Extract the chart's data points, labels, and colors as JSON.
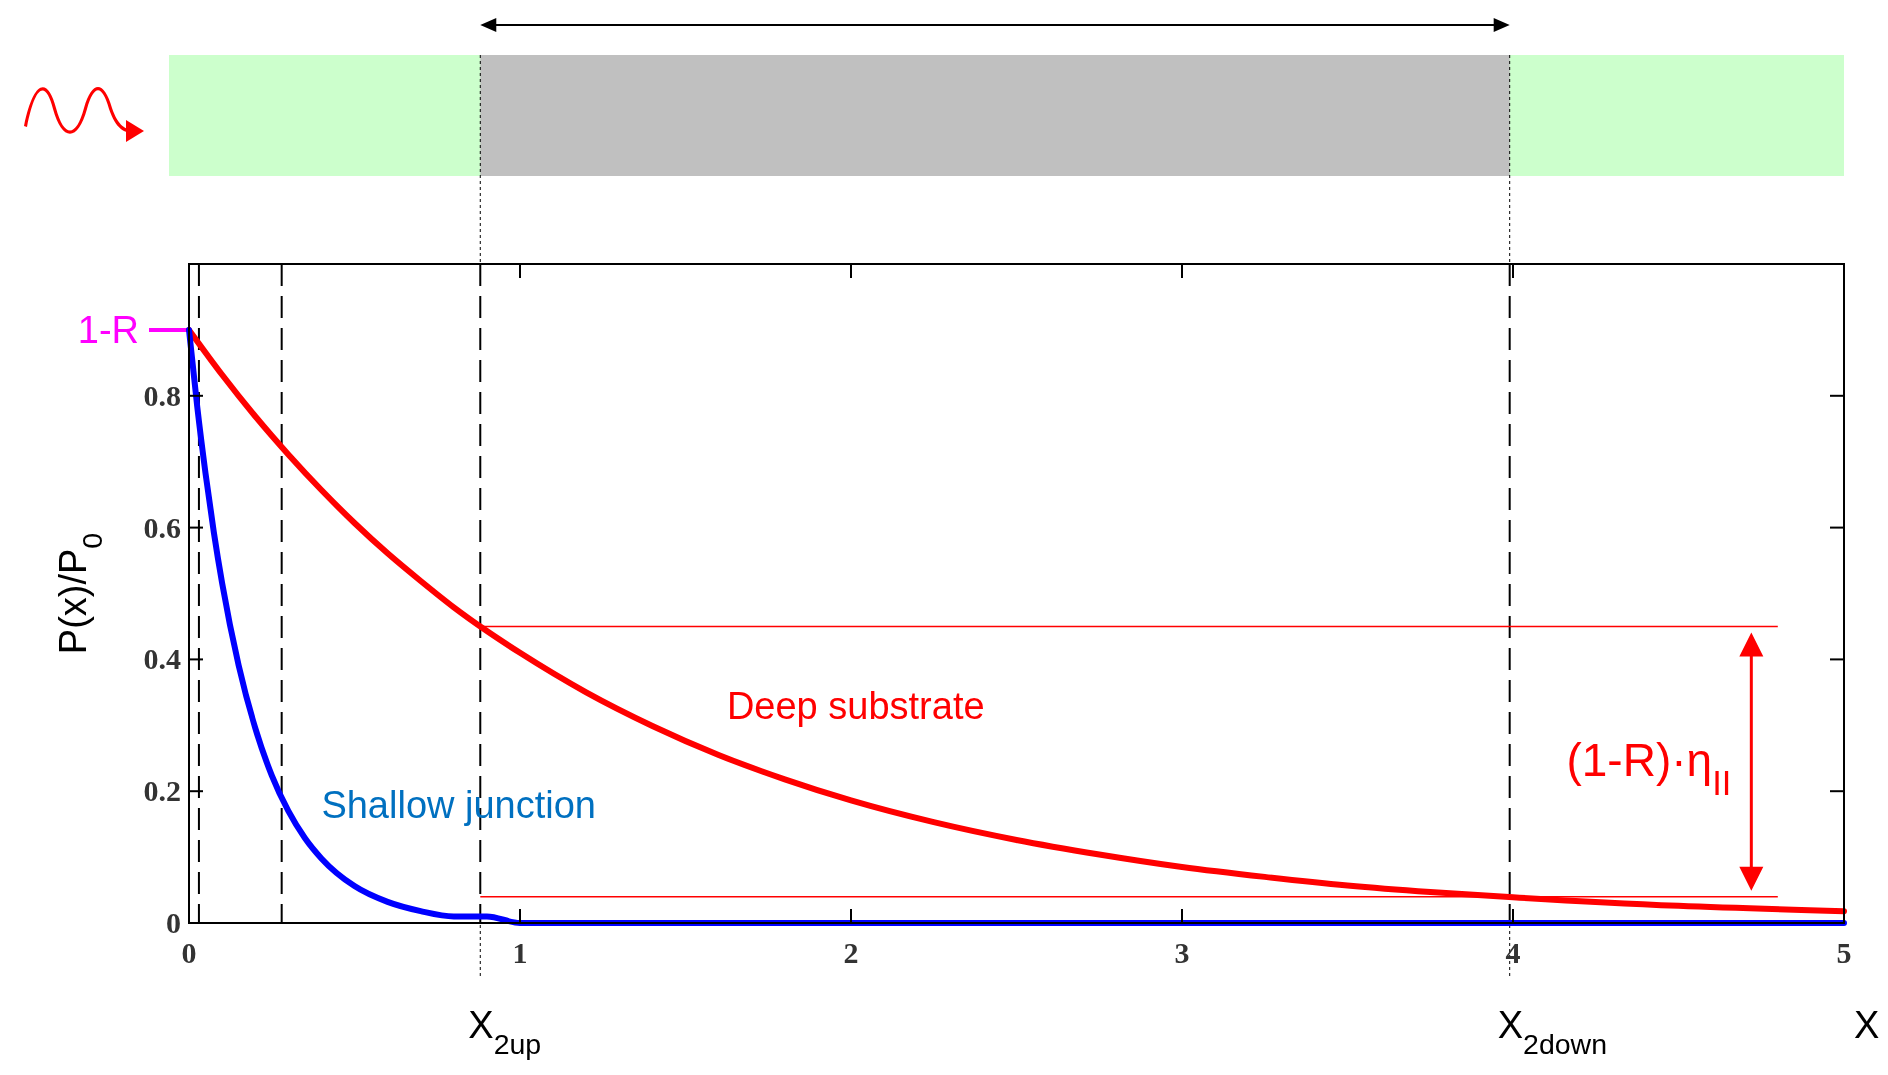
{
  "chart_data": {
    "type": "line",
    "xlabel": "X",
    "ylabel": "P(x)/P$_{0}$",
    "xlim": [
      0,
      5
    ],
    "ylim": [
      0,
      1
    ],
    "xticks": [
      0,
      1,
      2,
      3,
      4,
      5
    ],
    "yticks": [
      0,
      0.2,
      0.4,
      0.6,
      0.8
    ],
    "grid": false,
    "marker": "none",
    "line_style": "solid",
    "series": [
      {
        "name": "Deep substrate",
        "color": "#ff0000",
        "x": [
          0,
          0.1,
          0.2,
          0.3,
          0.4,
          0.5,
          0.6,
          0.7,
          0.8,
          0.9,
          1.0,
          1.2,
          1.4,
          1.6,
          1.8,
          2.0,
          2.25,
          2.5,
          2.75,
          3.0,
          3.25,
          3.5,
          3.75,
          4.0,
          4.5,
          5.0
        ],
        "values": [
          0.9,
          0.832,
          0.769,
          0.711,
          0.657,
          0.607,
          0.561,
          0.519,
          0.479,
          0.443,
          0.41,
          0.35,
          0.299,
          0.255,
          0.218,
          0.186,
          0.153,
          0.126,
          0.104,
          0.085,
          0.07,
          0.057,
          0.047,
          0.039,
          0.026,
          0.018
        ]
      },
      {
        "name": "Shallow junction",
        "color": "#0000ff",
        "x": [
          0,
          0.025,
          0.05,
          0.075,
          0.1,
          0.15,
          0.2,
          0.25,
          0.3,
          0.35,
          0.4,
          0.5,
          0.6,
          0.7,
          0.8,
          0.9,
          1.0,
          1.1,
          5.0
        ],
        "values": [
          0.9,
          0.783,
          0.682,
          0.593,
          0.516,
          0.391,
          0.296,
          0.224,
          0.17,
          0.129,
          0.098,
          0.056,
          0.032,
          0.018,
          0.01,
          0.01,
          0,
          0,
          0
        ]
      }
    ],
    "ref_lines": [
      {
        "axis": "y",
        "value": 0.9,
        "label": "1-R",
        "color": "#ff00ff"
      },
      {
        "axis": "x",
        "value": 0.03,
        "label": null,
        "color": "#000000",
        "line_style": "dashed"
      },
      {
        "axis": "x",
        "value": 0.28,
        "label": null,
        "color": "#000000",
        "line_style": "dashed"
      },
      {
        "axis": "x",
        "value": 0.88,
        "label": "X$_{2up}$",
        "color": "#000000",
        "line_style": "dashed"
      },
      {
        "axis": "x",
        "value": 3.99,
        "label": "X$_{2down}$",
        "color": "#000000",
        "line_style": "dashed"
      },
      {
        "axis": "y",
        "value": 0.45,
        "label": null,
        "color": "#ff0000",
        "line_style": "solid"
      },
      {
        "axis": "y",
        "value": 0.04,
        "label": null,
        "color": "#ff0000",
        "line_style": "solid"
      }
    ],
    "annotations": [
      "(1-R)·η$_{II}$"
    ]
  }
}
